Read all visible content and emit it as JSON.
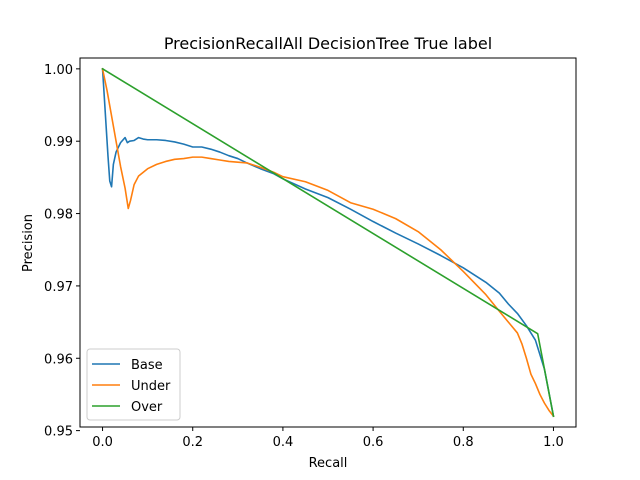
{
  "chart_data": {
    "type": "line",
    "title": "PrecisionRecallAll DecisionTree True label",
    "xlabel": "Recall",
    "ylabel": "Precision",
    "xlim": [
      -0.05,
      1.05
    ],
    "ylim": [
      0.9505,
      1.0015
    ],
    "xticks": [
      0.0,
      0.2,
      0.4,
      0.6,
      0.8,
      1.0
    ],
    "xtick_labels": [
      "0.0",
      "0.2",
      "0.4",
      "0.6",
      "0.8",
      "1.0"
    ],
    "yticks": [
      0.95,
      0.96,
      0.97,
      0.98,
      0.99,
      1.0
    ],
    "ytick_labels": [
      "0.95",
      "0.96",
      "0.97",
      "0.98",
      "0.99",
      "1.00"
    ],
    "grid": false,
    "legend_position": "lower-left",
    "series": [
      {
        "name": "Base",
        "color": "#1f77b4",
        "x": [
          0.0,
          0.004,
          0.008,
          0.012,
          0.016,
          0.02,
          0.024,
          0.03,
          0.04,
          0.05,
          0.055,
          0.06,
          0.07,
          0.08,
          0.09,
          0.1,
          0.12,
          0.14,
          0.16,
          0.18,
          0.2,
          0.22,
          0.24,
          0.26,
          0.28,
          0.3,
          0.32,
          0.35,
          0.38,
          0.4,
          0.45,
          0.5,
          0.55,
          0.6,
          0.65,
          0.7,
          0.75,
          0.8,
          0.85,
          0.88,
          0.9,
          0.92,
          0.94,
          0.96,
          0.98,
          1.0
        ],
        "y": [
          1.0,
          0.996,
          0.992,
          0.988,
          0.9845,
          0.9837,
          0.9868,
          0.9885,
          0.9898,
          0.9905,
          0.9898,
          0.99,
          0.9901,
          0.9905,
          0.9903,
          0.9902,
          0.9902,
          0.9901,
          0.9899,
          0.9896,
          0.9892,
          0.9892,
          0.9889,
          0.9885,
          0.988,
          0.9876,
          0.987,
          0.9862,
          0.9855,
          0.9848,
          0.9834,
          0.9822,
          0.9806,
          0.9789,
          0.9773,
          0.9758,
          0.9742,
          0.9725,
          0.9705,
          0.969,
          0.9675,
          0.9662,
          0.9645,
          0.9625,
          0.9585,
          0.952
        ]
      },
      {
        "name": "Under",
        "color": "#ff7f0e",
        "x": [
          0.0,
          0.01,
          0.02,
          0.03,
          0.04,
          0.05,
          0.057,
          0.062,
          0.07,
          0.08,
          0.1,
          0.12,
          0.14,
          0.16,
          0.18,
          0.2,
          0.22,
          0.24,
          0.26,
          0.28,
          0.3,
          0.32,
          0.35,
          0.38,
          0.4,
          0.45,
          0.5,
          0.55,
          0.6,
          0.65,
          0.7,
          0.75,
          0.8,
          0.85,
          0.88,
          0.9,
          0.92,
          0.93,
          0.94,
          0.95,
          0.96,
          0.97,
          0.98,
          0.99,
          1.0
        ],
        "y": [
          1.0,
          0.997,
          0.9935,
          0.99,
          0.9865,
          0.9835,
          0.9807,
          0.9818,
          0.984,
          0.9852,
          0.9862,
          0.9868,
          0.9872,
          0.9875,
          0.9876,
          0.9878,
          0.9878,
          0.9876,
          0.9874,
          0.9872,
          0.9871,
          0.987,
          0.9864,
          0.9857,
          0.9851,
          0.9844,
          0.9832,
          0.9815,
          0.9806,
          0.9793,
          0.9775,
          0.975,
          0.972,
          0.9688,
          0.9665,
          0.965,
          0.9635,
          0.962,
          0.96,
          0.9578,
          0.9565,
          0.955,
          0.9538,
          0.9528,
          0.952
        ]
      },
      {
        "name": "Over",
        "color": "#2ca02c",
        "x": [
          0.0,
          0.965,
          1.0
        ],
        "y": [
          1.0,
          0.9634,
          0.952
        ]
      }
    ]
  }
}
